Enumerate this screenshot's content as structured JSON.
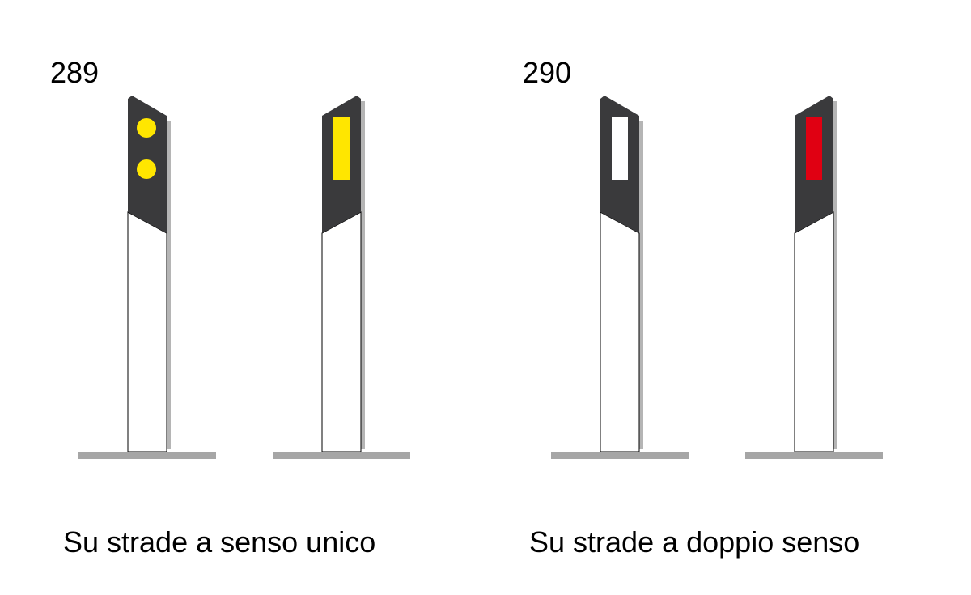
{
  "figure": {
    "groups": [
      {
        "number": "289",
        "caption": "Su strade a senso unico",
        "posts": [
          {
            "side": "right",
            "reflector": "two-round-dots",
            "reflector_color": "#FFE600"
          },
          {
            "side": "left",
            "reflector": "rectangle",
            "reflector_color": "#FFE600"
          }
        ]
      },
      {
        "number": "290",
        "caption": "Su strade a doppio senso",
        "posts": [
          {
            "side": "right",
            "reflector": "rectangle",
            "reflector_color": "#FFFFFF"
          },
          {
            "side": "left",
            "reflector": "rectangle",
            "reflector_color": "#E00012"
          }
        ]
      }
    ]
  },
  "colors": {
    "post_band": "#3A3A3C",
    "post_body": "#FFFFFF",
    "shadow": "#B5B5B5",
    "ground": "#A6A6A6"
  }
}
